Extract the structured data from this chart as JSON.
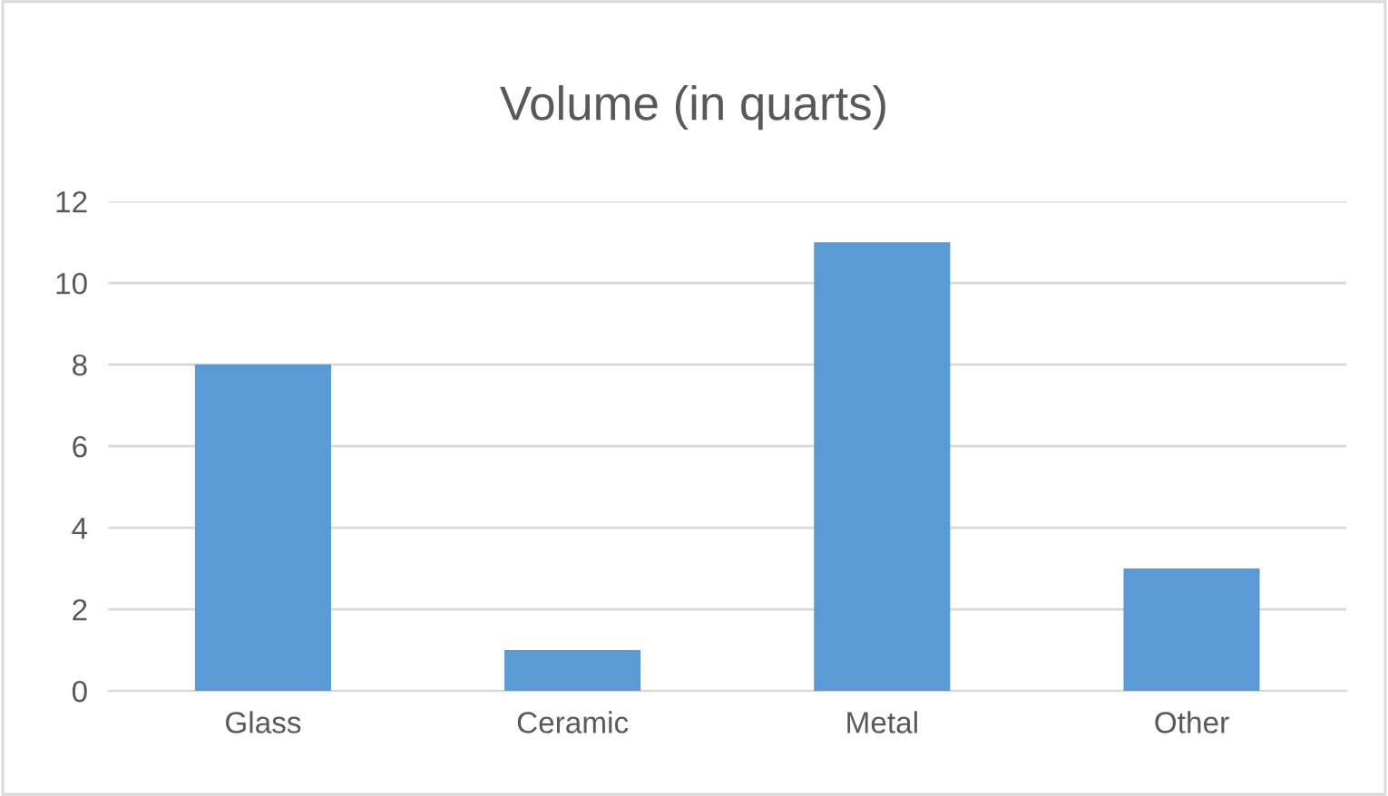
{
  "chart_data": {
    "type": "bar",
    "title": "Volume (in quarts)",
    "categories": [
      "Glass",
      "Ceramic",
      "Metal",
      "Other"
    ],
    "values": [
      8,
      1,
      11,
      3
    ],
    "color": "#5b9bd5",
    "ylim": [
      0,
      12
    ],
    "yticks": [
      0,
      2,
      4,
      6,
      8,
      10,
      12
    ],
    "grid": "y",
    "legend": false
  }
}
